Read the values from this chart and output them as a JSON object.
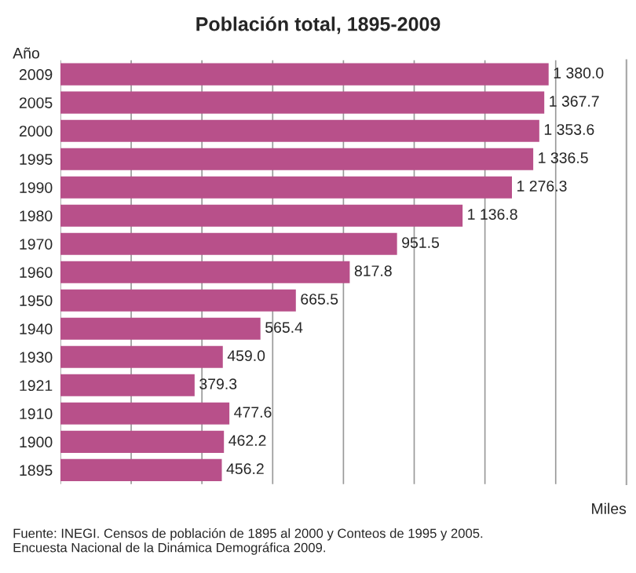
{
  "chart_data": {
    "type": "bar",
    "orientation": "horizontal",
    "title": "Población total, 1895-2009",
    "ylabel": "Año",
    "xlabel": "Miles",
    "categories": [
      "2009",
      "2005",
      "2000",
      "1995",
      "1990",
      "1980",
      "1970",
      "1960",
      "1950",
      "1940",
      "1930",
      "1921",
      "1910",
      "1900",
      "1895"
    ],
    "values": [
      1380.0,
      1367.7,
      1353.6,
      1336.5,
      1276.3,
      1136.8,
      951.5,
      817.8,
      665.5,
      565.4,
      459.0,
      379.3,
      477.6,
      462.2,
      456.2
    ],
    "value_labels": [
      "1 380.0",
      "1 367.7",
      "1 353.6",
      "1 336.5",
      "1 276.3",
      "1 136.8",
      "951.5",
      "817.8",
      "665.5",
      "565.4",
      "459.0",
      "379.3",
      "477.6",
      "462.2",
      "456.2"
    ],
    "color": "#b8508a",
    "xlim": [
      0,
      1600
    ],
    "xticks": [
      {
        "value": 0,
        "label": null
      },
      {
        "value": 200,
        "label": null
      },
      {
        "value": 400,
        "label": null
      },
      {
        "value": 600,
        "label": null
      },
      {
        "value": 800,
        "label": null
      },
      {
        "value": 1000,
        "label": null
      },
      {
        "value": 1200,
        "label": null
      },
      {
        "value": 1400,
        "label": null
      },
      {
        "value": 1600,
        "label": null
      }
    ],
    "grid": "x",
    "tick_labels": "y",
    "annotations": [
      "Fuente: INEGI. Censos de población de 1895 al 2000 y Conteos de 1995 y 2005.\nEncuesta Nacional de la Dinámica Demográfica 2009."
    ]
  }
}
